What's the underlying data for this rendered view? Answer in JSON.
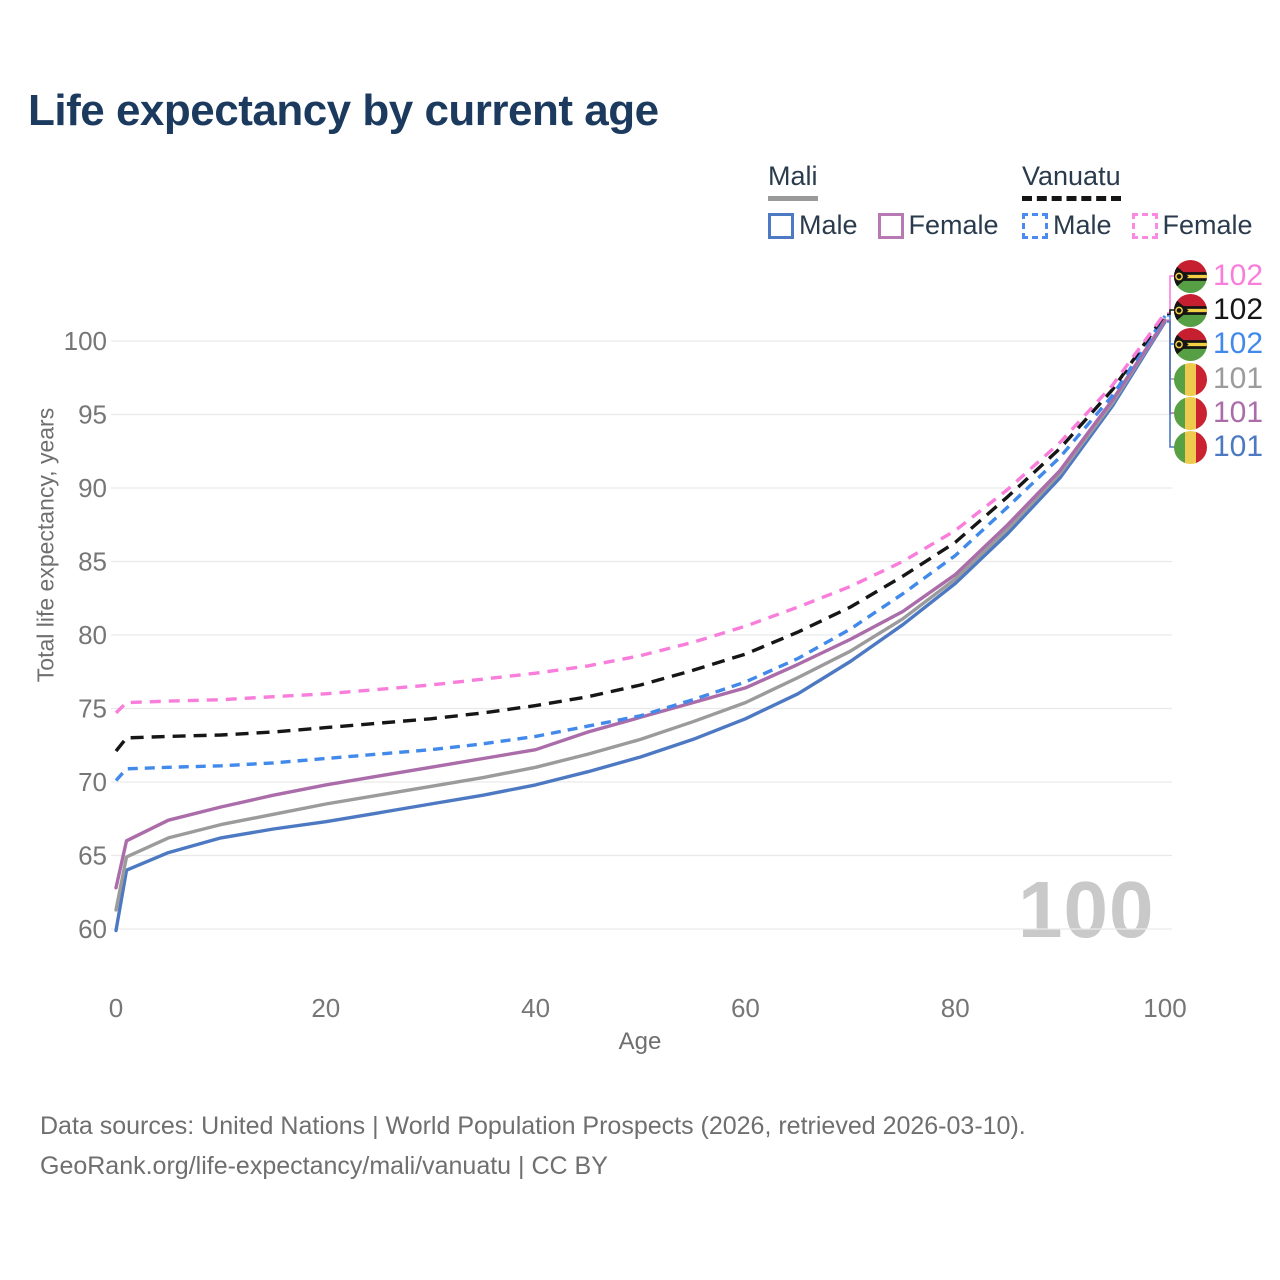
{
  "title": "Life expectancy by current age",
  "legend": {
    "groups": [
      {
        "label": "Mali",
        "line_style": "solid",
        "underline_color": "#9a9a9a",
        "items": [
          {
            "label": "Male",
            "color": "#4d7ac2"
          },
          {
            "label": "Female",
            "color": "#b679b4"
          }
        ]
      },
      {
        "label": "Vanuatu",
        "line_style": "dashed",
        "underline_color": "#151515",
        "items": [
          {
            "label": "Male",
            "color": "#4b8bf0"
          },
          {
            "label": "Female",
            "color": "#fb8ae2"
          }
        ]
      }
    ]
  },
  "chart_data": {
    "type": "line",
    "title": "Life expectancy by current age",
    "xlabel": "Age",
    "ylabel": "Total life expectancy, years",
    "xlim": [
      0,
      100
    ],
    "ylim": [
      60,
      100
    ],
    "xticks": [
      0,
      20,
      40,
      60,
      80,
      100
    ],
    "yticks": [
      60,
      65,
      70,
      75,
      80,
      85,
      90,
      95,
      100
    ],
    "grid": true,
    "legend_position": "top-right",
    "watermark": "100",
    "x": [
      0,
      1,
      5,
      10,
      15,
      20,
      25,
      30,
      35,
      40,
      45,
      50,
      55,
      60,
      65,
      70,
      75,
      80,
      85,
      90,
      95,
      100
    ],
    "series": [
      {
        "name": "mali-male",
        "country": "Mali",
        "sex": "Male",
        "style": "solid",
        "color": "#4d79c3",
        "dash": "",
        "values": [
          59.9,
          64.0,
          65.2,
          66.2,
          66.8,
          67.3,
          67.9,
          68.5,
          69.1,
          69.8,
          70.7,
          71.7,
          72.9,
          74.3,
          76.0,
          78.2,
          80.7,
          83.5,
          86.9,
          90.7,
          95.6,
          101.3
        ]
      },
      {
        "name": "mali-total",
        "country": "Mali",
        "sex": "Both",
        "style": "solid",
        "color": "#9b9b9b",
        "dash": "",
        "values": [
          61.3,
          64.9,
          66.2,
          67.1,
          67.8,
          68.5,
          69.1,
          69.7,
          70.3,
          71.0,
          71.9,
          72.9,
          74.1,
          75.4,
          77.1,
          78.9,
          81.1,
          83.8,
          87.2,
          91.0,
          95.8,
          101.4
        ]
      },
      {
        "name": "mali-female",
        "country": "Mali",
        "sex": "Female",
        "style": "solid",
        "color": "#ab6caa",
        "dash": "",
        "values": [
          62.8,
          66.0,
          67.4,
          68.3,
          69.1,
          69.8,
          70.4,
          71.0,
          71.6,
          72.2,
          73.4,
          74.4,
          75.4,
          76.4,
          78.0,
          79.7,
          81.6,
          84.1,
          87.5,
          91.2,
          96.0,
          101.4
        ]
      },
      {
        "name": "vanuatu-male",
        "country": "Vanuatu",
        "sex": "Male",
        "style": "dashed",
        "color": "#4189ea",
        "dash": "10 7",
        "values": [
          70.1,
          70.9,
          71.0,
          71.1,
          71.3,
          71.6,
          71.9,
          72.2,
          72.6,
          73.1,
          73.8,
          74.5,
          75.6,
          76.8,
          78.4,
          80.4,
          82.8,
          85.4,
          88.7,
          92.1,
          96.3,
          101.7
        ]
      },
      {
        "name": "vanuatu-total",
        "country": "Vanuatu",
        "sex": "Both",
        "style": "dashed",
        "color": "#161616",
        "dash": "13 8",
        "values": [
          72.1,
          73.0,
          73.1,
          73.2,
          73.4,
          73.7,
          74.0,
          74.3,
          74.7,
          75.2,
          75.8,
          76.6,
          77.6,
          78.7,
          80.2,
          81.9,
          84.0,
          86.3,
          89.4,
          92.7,
          96.7,
          101.8
        ]
      },
      {
        "name": "vanuatu-female",
        "country": "Vanuatu",
        "sex": "Female",
        "style": "dashed",
        "color": "#f97edb",
        "dash": "11 8",
        "values": [
          74.7,
          75.4,
          75.5,
          75.6,
          75.8,
          76.0,
          76.3,
          76.6,
          77.0,
          77.4,
          77.9,
          78.6,
          79.5,
          80.6,
          81.9,
          83.3,
          85.0,
          87.1,
          89.9,
          93.1,
          97.0,
          101.9
        ]
      }
    ],
    "end_labels": [
      {
        "series": "vanuatu-female",
        "value": "102",
        "flag": "vanuatu"
      },
      {
        "series": "vanuatu-total",
        "value": "102",
        "flag": "vanuatu"
      },
      {
        "series": "vanuatu-male",
        "value": "102",
        "flag": "vanuatu"
      },
      {
        "series": "mali-total",
        "value": "101",
        "flag": "mali"
      },
      {
        "series": "mali-female",
        "value": "101",
        "flag": "mali"
      },
      {
        "series": "mali-male",
        "value": "101",
        "flag": "mali"
      }
    ]
  },
  "footer": {
    "line1": "Data sources: United Nations | World Population Prospects (2026, retrieved 2026-03-10).",
    "line2": "GeoRank.org/life-expectancy/mali/vanuatu | CC BY"
  }
}
